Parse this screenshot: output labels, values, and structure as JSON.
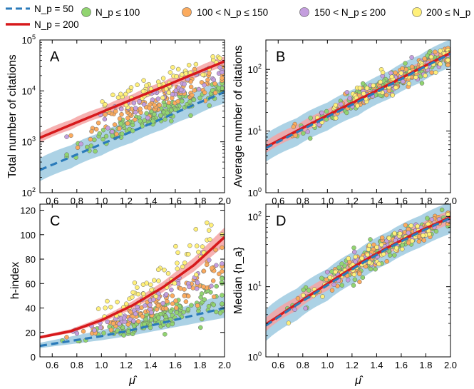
{
  "legend": {
    "line_np50": "N_p = 50",
    "line_np200": "N_p = 200",
    "bin1": "N_p ≤ 100",
    "bin2": "100 < N_p ≤ 150",
    "bin3": "150 < N_p ≤ 200",
    "bin4": "200 ≤ N_p"
  },
  "colors": {
    "np50_line": "#2b7bba",
    "np50_band": "#9ecae1",
    "np200_line": "#d7191c",
    "np200_band": "#f4a3a3",
    "bin1": "#91d470",
    "bin2": "#fbab5e",
    "bin3": "#c49ede",
    "bin4": "#fff07a"
  },
  "x_axis": {
    "label": "μ̂",
    "ticks": [
      "0.6",
      "0.8",
      "1.0",
      "1.2",
      "1.4",
      "1.6",
      "1.8",
      "2.0"
    ]
  },
  "chart_data": [
    {
      "panel": "A",
      "type": "scatter",
      "yscale": "log",
      "ylabel": "Total number of citations",
      "xlim": [
        0.5,
        2.0
      ],
      "ylim": [
        100,
        100000
      ],
      "ytick_labels": [
        {
          "base": "10",
          "exp": "2"
        },
        {
          "base": "10",
          "exp": "3"
        },
        {
          "base": "10",
          "exp": "4"
        },
        {
          "base": "10",
          "exp": "5"
        }
      ],
      "series": [
        {
          "name": "N_p = 50",
          "x": [
            0.5,
            0.75,
            1.0,
            1.25,
            1.5,
            1.75,
            2.0
          ],
          "y": [
            280,
            500,
            900,
            1600,
            2900,
            5300,
            9500
          ]
        },
        {
          "name": "N_p = 200",
          "x": [
            0.5,
            0.75,
            1.0,
            1.25,
            1.5,
            1.75,
            2.0
          ],
          "y": [
            1200,
            2150,
            3800,
            6800,
            12000,
            21500,
            38000
          ]
        }
      ]
    },
    {
      "panel": "B",
      "type": "scatter",
      "yscale": "log",
      "ylabel": "Average number of citations",
      "xlim": [
        0.5,
        2.0
      ],
      "ylim": [
        1,
        300
      ],
      "ytick_labels": [
        {
          "base": "10",
          "exp": "0"
        },
        {
          "base": "10",
          "exp": "1"
        },
        {
          "base": "10",
          "exp": "2"
        }
      ],
      "series": [
        {
          "name": "N_p = 50",
          "x": [
            0.5,
            0.75,
            1.0,
            1.25,
            1.5,
            1.75,
            2.0
          ],
          "y": [
            5.3,
            9.5,
            17,
            30,
            55,
            100,
            180
          ]
        },
        {
          "name": "N_p = 200",
          "x": [
            0.5,
            0.75,
            1.0,
            1.25,
            1.5,
            1.75,
            2.0
          ],
          "y": [
            5.5,
            10,
            18,
            32,
            57,
            103,
            185
          ]
        }
      ]
    },
    {
      "panel": "C",
      "type": "scatter",
      "yscale": "linear",
      "ylabel": "h-index",
      "xlim": [
        0.5,
        2.0
      ],
      "ylim": [
        0,
        125
      ],
      "ytick_labels": [
        "0",
        "20",
        "40",
        "60",
        "80",
        "100",
        "120"
      ],
      "series": [
        {
          "name": "N_p = 50",
          "x": [
            0.5,
            0.75,
            1.0,
            1.25,
            1.5,
            1.75,
            2.0
          ],
          "y": [
            9,
            13,
            17,
            22,
            28,
            34,
            40
          ]
        },
        {
          "name": "N_p = 200",
          "x": [
            0.5,
            0.75,
            1.0,
            1.25,
            1.5,
            1.75,
            2.0
          ],
          "y": [
            16,
            21,
            30,
            42,
            57,
            75,
            98
          ]
        }
      ]
    },
    {
      "panel": "D",
      "type": "scatter",
      "yscale": "log",
      "ylabel": "Median {n_a}",
      "xlim": [
        0.5,
        2.0
      ],
      "ylim": [
        1,
        150
      ],
      "ytick_labels": [
        {
          "base": "10",
          "exp": "0"
        },
        {
          "base": "10",
          "exp": "1"
        },
        {
          "base": "10",
          "exp": "2"
        }
      ],
      "series": [
        {
          "name": "N_p = 50",
          "x": [
            0.5,
            0.75,
            1.0,
            1.25,
            1.5,
            1.75,
            2.0
          ],
          "y": [
            2.8,
            5.5,
            10.5,
            20,
            36,
            60,
            95
          ]
        },
        {
          "name": "N_p = 200",
          "x": [
            0.5,
            0.75,
            1.0,
            1.25,
            1.5,
            1.75,
            2.0
          ],
          "y": [
            2.9,
            5.7,
            11,
            21,
            37,
            62,
            98
          ]
        }
      ]
    }
  ]
}
